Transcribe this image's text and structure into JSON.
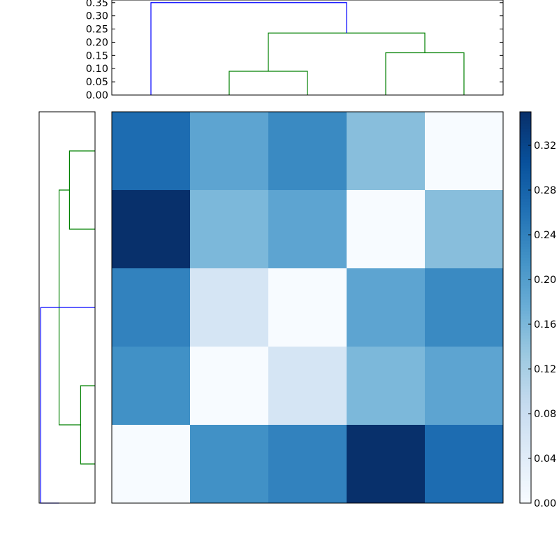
{
  "chart_data": [
    {
      "type": "dendrogram",
      "panel": "top",
      "orientation": "top",
      "ylim": [
        0,
        0.36
      ],
      "yticks": [
        "0.00",
        "0.05",
        "0.10",
        "0.15",
        "0.20",
        "0.25",
        "0.30",
        "0.35"
      ],
      "tick_values": [
        0,
        0.05,
        0.1,
        0.15,
        0.2,
        0.25,
        0.3,
        0.35
      ],
      "leaf_count": 5,
      "links": [
        {
          "left_leaf_pos": 1.5,
          "right_leaf_pos": 2.5,
          "left_height": 0,
          "right_height": 0,
          "height": 0.09,
          "color": "#008000"
        },
        {
          "left_leaf_pos": 3.5,
          "right_leaf_pos": 4.5,
          "left_height": 0,
          "right_height": 0,
          "height": 0.16,
          "color": "#008000"
        },
        {
          "left_leaf_pos": 2.0,
          "right_leaf_pos": 4.0,
          "left_height": 0.09,
          "right_height": 0.16,
          "height": 0.235,
          "color": "#008000"
        },
        {
          "left_leaf_pos": 0.5,
          "right_leaf_pos": 3.0,
          "left_height": 0,
          "right_height": 0.235,
          "height": 0.35,
          "color": "#0000ff"
        }
      ]
    },
    {
      "type": "dendrogram",
      "panel": "left",
      "orientation": "left",
      "xlim": [
        0.35,
        0
      ],
      "leaf_count": 5,
      "links": [
        {
          "bottom_leaf_pos": 0.5,
          "top_leaf_pos": 1.5,
          "bottom_height": 0,
          "top_height": 0,
          "height": 0.09,
          "color": "#008000"
        },
        {
          "bottom_leaf_pos": 3.5,
          "top_leaf_pos": 4.5,
          "bottom_height": 0,
          "top_height": 0,
          "height": 0.16,
          "color": "#008000"
        },
        {
          "bottom_leaf_pos": 1.0,
          "top_leaf_pos": 4.0,
          "bottom_height": 0.09,
          "top_height": 0.16,
          "height": 0.225,
          "color": "#008000"
        },
        {
          "bottom_leaf_pos": 2.5,
          "top_leaf_pos": 0.0,
          "bottom_height": 0,
          "top_height": 0.225,
          "height": 0.34,
          "color": "#0000ff"
        }
      ]
    },
    {
      "type": "heatmap",
      "panel": "main",
      "colormap": "Blues",
      "vmin": 0,
      "vmax": 0.35,
      "rows": 5,
      "cols": 5,
      "values": [
        [
          0.27,
          0.19,
          0.23,
          0.15,
          0.0
        ],
        [
          0.35,
          0.16,
          0.19,
          0.0,
          0.15
        ],
        [
          0.24,
          0.06,
          0.0,
          0.19,
          0.23
        ],
        [
          0.22,
          0.0,
          0.06,
          0.16,
          0.19
        ],
        [
          0.0,
          0.22,
          0.24,
          0.35,
          0.27
        ]
      ]
    },
    {
      "type": "colorbar",
      "panel": "colorbar",
      "vmin": 0,
      "vmax": 0.35,
      "ticks": [
        "0.00",
        "0.04",
        "0.08",
        "0.12",
        "0.16",
        "0.20",
        "0.24",
        "0.28",
        "0.32"
      ],
      "tick_values": [
        0,
        0.04,
        0.08,
        0.12,
        0.16,
        0.2,
        0.24,
        0.28,
        0.32
      ]
    }
  ]
}
